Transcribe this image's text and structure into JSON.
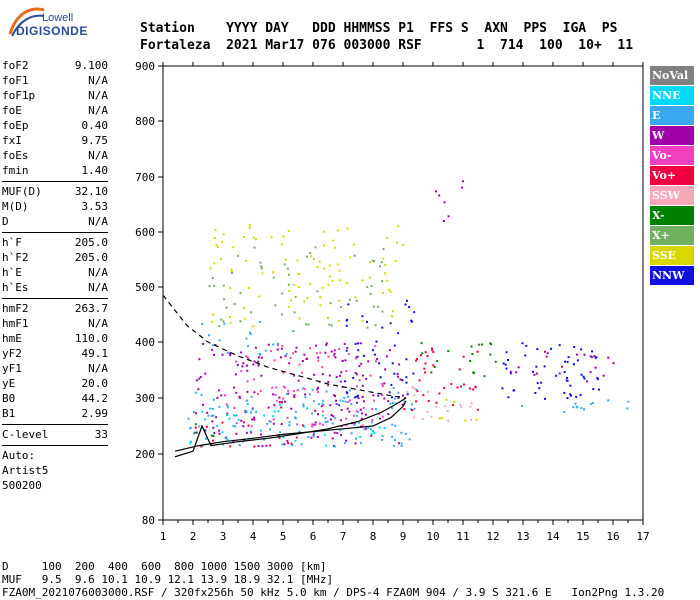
{
  "logo": {
    "line1": "Lowell",
    "line2": "DIGISONDE"
  },
  "header": {
    "row1": "Station    YYYY DAY   DDD HHMMSS P1  FFS S  AXN  PPS  IGA  PS",
    "row2": "Fortaleza  2021 Mar17 076 003000 RSF       1  714  100  10+  11"
  },
  "params": [
    {
      "name": "foF2",
      "value": "9.100"
    },
    {
      "name": "foF1",
      "value": "N/A"
    },
    {
      "name": "foF1p",
      "value": "N/A"
    },
    {
      "name": "foE",
      "value": "N/A"
    },
    {
      "name": "foEp",
      "value": "0.40"
    },
    {
      "name": "fxI",
      "value": "9.75"
    },
    {
      "name": "foEs",
      "value": "N/A"
    },
    {
      "name": "fmin",
      "value": "1.40"
    },
    {
      "sep": true
    },
    {
      "name": "MUF(D)",
      "value": "32.10"
    },
    {
      "name": "M(D)",
      "value": "3.53"
    },
    {
      "name": "D",
      "value": "N/A"
    },
    {
      "sep": true
    },
    {
      "name": "h`F",
      "value": "205.0"
    },
    {
      "name": "h`F2",
      "value": "205.0"
    },
    {
      "name": "h`E",
      "value": "N/A"
    },
    {
      "name": "h`Es",
      "value": "N/A"
    },
    {
      "sep": true
    },
    {
      "name": "hmF2",
      "value": "263.7"
    },
    {
      "name": "hmF1",
      "value": "N/A"
    },
    {
      "name": "hmE",
      "value": "110.0"
    },
    {
      "name": "yF2",
      "value": "49.1"
    },
    {
      "name": "yF1",
      "value": "N/A"
    },
    {
      "name": "yE",
      "value": "20.0"
    },
    {
      "name": "B0",
      "value": "44.2"
    },
    {
      "name": "B1",
      "value": "2.99"
    },
    {
      "sep": true
    },
    {
      "name": "C-level",
      "value": "33"
    },
    {
      "sep": true
    },
    {
      "text": "Auto:"
    },
    {
      "text": "Artist5"
    },
    {
      "text": "500200"
    }
  ],
  "legend": [
    {
      "label": "NoVal",
      "color": "#808080"
    },
    {
      "label": "NNE",
      "color": "#00d8f8"
    },
    {
      "label": "E",
      "color": "#3aa8f0"
    },
    {
      "label": "W",
      "color": "#a000a8"
    },
    {
      "label": "Vo-",
      "color": "#f040c0"
    },
    {
      "label": "Vo+",
      "color": "#f00040"
    },
    {
      "label": "SSW",
      "color": "#f8a8b8"
    },
    {
      "label": "X-",
      "color": "#008000"
    },
    {
      "label": "X+",
      "color": "#70b060"
    },
    {
      "label": "SSE",
      "color": "#d8d800"
    },
    {
      "label": "NNW",
      "color": "#1010e0"
    }
  ],
  "footer": {
    "row1": "D     100  200  400  600  800 1000 1500 3000 [km]",
    "row2": "MUF   9.5  9.6 10.1 10.9 12.1 13.9 18.9 32.1 [MHz]",
    "row3": "FZA0M_2021076003000.RSF / 320fx256h 50 kHz 5.0 km / DPS-4 FZA0M 904 / 3.9 S 321.6 E   Ion2Png 1.3.20"
  },
  "chart_data": {
    "type": "scatter",
    "title": "",
    "xlabel": "",
    "ylabel": "",
    "xlim": [
      1,
      17
    ],
    "ylim": [
      80,
      900
    ],
    "xticks": [
      1,
      2,
      3,
      4,
      5,
      6,
      7,
      8,
      9,
      10,
      11,
      12,
      13,
      14,
      15,
      16,
      17
    ],
    "yticks": [
      80,
      200,
      300,
      400,
      500,
      600,
      700,
      800,
      900
    ],
    "y_axis_scale": "nonlinear (virtual height, compressed below 200 km)",
    "trace_lines": [
      {
        "name": "virtual height trace",
        "color": "#000000",
        "style": "solid",
        "points": [
          [
            1.4,
            205
          ],
          [
            2.2,
            215
          ],
          [
            3.0,
            222
          ],
          [
            4.0,
            228
          ],
          [
            5.0,
            235
          ],
          [
            6.0,
            240
          ],
          [
            7.0,
            245
          ],
          [
            8.0,
            250
          ],
          [
            8.6,
            265
          ],
          [
            9.0,
            285
          ],
          [
            9.1,
            295
          ]
        ]
      },
      {
        "name": "profile",
        "color": "#000000",
        "style": "solid",
        "points": [
          [
            1.4,
            195
          ],
          [
            2.0,
            205
          ],
          [
            2.3,
            250
          ],
          [
            2.6,
            215
          ],
          [
            3.5,
            222
          ],
          [
            4.5,
            228
          ],
          [
            5.5,
            236
          ],
          [
            6.5,
            245
          ],
          [
            7.5,
            258
          ],
          [
            8.3,
            275
          ],
          [
            8.8,
            290
          ],
          [
            9.1,
            300
          ]
        ]
      },
      {
        "name": "upper bound",
        "color": "#000000",
        "style": "dashed",
        "points": [
          [
            1.0,
            485
          ],
          [
            1.8,
            430
          ],
          [
            2.5,
            400
          ],
          [
            3.5,
            375
          ],
          [
            4.5,
            355
          ],
          [
            5.5,
            340
          ],
          [
            6.5,
            325
          ],
          [
            7.5,
            315
          ],
          [
            8.5,
            305
          ],
          [
            9.1,
            300
          ]
        ]
      }
    ],
    "clusters": [
      {
        "color": "#a000a8",
        "x": [
          2.0,
          9.0
        ],
        "y": [
          215,
          400
        ],
        "density": 0.9
      },
      {
        "color": "#f040c0",
        "x": [
          3.0,
          8.5
        ],
        "y": [
          250,
          400
        ],
        "density": 0.6
      },
      {
        "color": "#3aa8f0",
        "x": [
          1.8,
          9.5
        ],
        "y": [
          215,
          320
        ],
        "density": 0.8
      },
      {
        "color": "#00d8f8",
        "x": [
          1.8,
          8.5
        ],
        "y": [
          215,
          300
        ],
        "density": 0.5
      },
      {
        "color": "#d8d800",
        "x": [
          2.5,
          9.0
        ],
        "y": [
          430,
          620
        ],
        "density": 0.45
      },
      {
        "color": "#70b060",
        "x": [
          2.5,
          8.5
        ],
        "y": [
          420,
          580
        ],
        "density": 0.35
      },
      {
        "color": "#3aa8f0",
        "x": [
          2.0,
          5.5
        ],
        "y": [
          380,
          440
        ],
        "density": 0.5
      },
      {
        "color": "#1010e0",
        "x": [
          7.0,
          9.5
        ],
        "y": [
          300,
          480
        ],
        "density": 0.6
      },
      {
        "color": "#1010e0",
        "x": [
          12.0,
          15.5
        ],
        "y": [
          300,
          400
        ],
        "density": 0.9
      },
      {
        "color": "#a000a8",
        "x": [
          12.5,
          16.0
        ],
        "y": [
          330,
          390
        ],
        "density": 0.6
      },
      {
        "color": "#3aa8f0",
        "x": [
          12.5,
          16.5
        ],
        "y": [
          275,
          300
        ],
        "density": 0.8
      },
      {
        "color": "#f00040",
        "x": [
          9.0,
          11.5
        ],
        "y": [
          280,
          400
        ],
        "density": 0.7
      },
      {
        "color": "#f8a8b8",
        "x": [
          9.0,
          11.5
        ],
        "y": [
          260,
          330
        ],
        "density": 0.6
      },
      {
        "color": "#d8d800",
        "x": [
          10.0,
          11.5
        ],
        "y": [
          260,
          300
        ],
        "density": 0.6
      },
      {
        "color": "#008000",
        "x": [
          9.0,
          12.5
        ],
        "y": [
          340,
          400
        ],
        "density": 0.5
      },
      {
        "color": "#a000a8",
        "x": [
          10.0,
          11.0
        ],
        "y": [
          620,
          700
        ],
        "density": 0.5
      },
      {
        "color": "#f00040",
        "x": [
          1.8,
          6.0
        ],
        "y": [
          215,
          260
        ],
        "density": 0.6
      },
      {
        "color": "#008000",
        "x": [
          2.0,
          3.5
        ],
        "y": [
          220,
          260
        ],
        "density": 0.4
      }
    ]
  }
}
